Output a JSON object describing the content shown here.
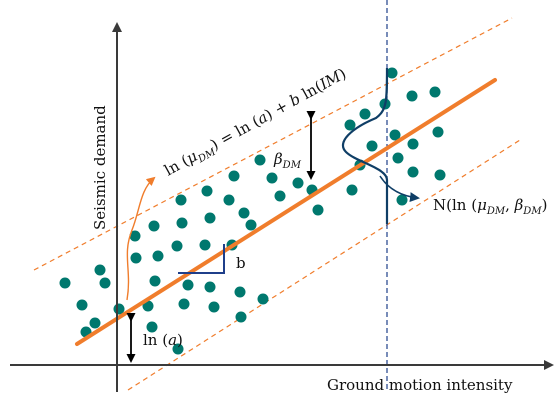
{
  "labels": {
    "y_axis": "Seismic demand",
    "x_axis": "Ground motion intensity",
    "equation": {
      "part1": "ln (",
      "mu": "μ",
      "mu_sub": "DM",
      "part2": ") = ln (",
      "a": "a",
      "part3": ") + ",
      "b": "b",
      "part4": " ln(",
      "im": "IM",
      "part5": ")"
    },
    "beta": {
      "symbol": "β",
      "sub": "DM"
    },
    "slope": "b",
    "intercept": {
      "pre": "ln (",
      "a": "a",
      "post": ")"
    },
    "normal": {
      "pre": "N(ln (",
      "mu": "μ",
      "mu_sub": "DM",
      "mid": ", ",
      "beta": "β",
      "beta_sub": "DM",
      "post": ")"
    }
  },
  "colors": {
    "regression_line": "#f07d2c",
    "bounds": "#f07d2c",
    "points": "#00786e",
    "normal_curve": "#0f3e66",
    "im_line": "#1f3f8a",
    "axes": "#3a3a3a",
    "text": "#111111"
  },
  "icons": [
    "double-headed-arrow",
    "curved-arrow",
    "slope-triangle"
  ]
}
